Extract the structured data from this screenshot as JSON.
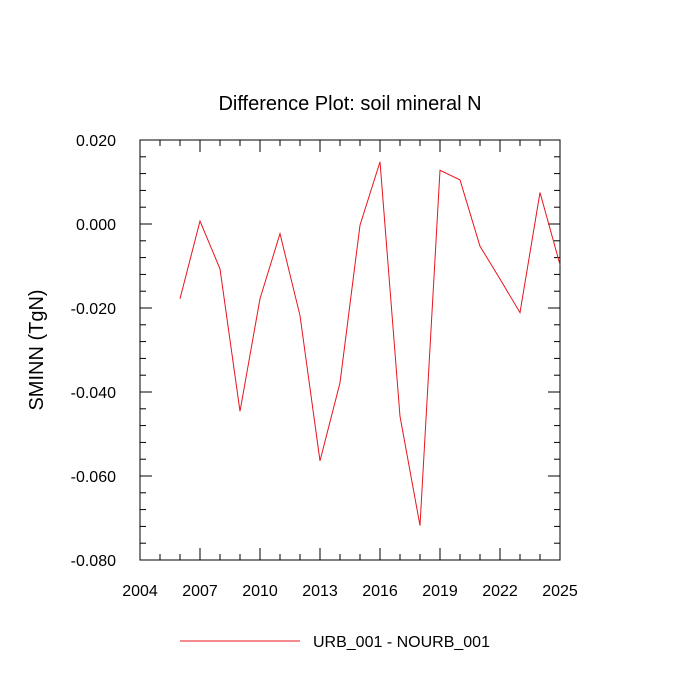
{
  "chart_data": {
    "type": "line",
    "title": "Difference Plot: soil mineral N",
    "xlabel": "",
    "ylabel": "SMINN  (TgN)",
    "xlim": [
      2004,
      2025
    ],
    "ylim": [
      -0.08,
      0.02
    ],
    "x_ticks": [
      2004,
      2007,
      2010,
      2013,
      2016,
      2019,
      2022,
      2025
    ],
    "x_tick_labels": [
      "2004",
      "2007",
      "2010",
      "2013",
      "2016",
      "2019",
      "2022",
      "2025"
    ],
    "y_ticks": [
      -0.08,
      -0.06,
      -0.04,
      -0.02,
      0.0,
      0.02
    ],
    "y_tick_labels": [
      "-0.080",
      "-0.060",
      "-0.040",
      "-0.020",
      "0.000",
      "0.020"
    ],
    "grid": false,
    "legend_position": "bottom-center",
    "series": [
      {
        "name": "URB_001 - NOURB_001",
        "color": "#e8141e",
        "x": [
          2006,
          2007,
          2008,
          2009,
          2010,
          2011,
          2012,
          2013,
          2014,
          2015,
          2016,
          2017,
          2018,
          2019,
          2020,
          2021,
          2022,
          2023,
          2024,
          2025
        ],
        "y": [
          -0.0178,
          0.0007,
          -0.0107,
          -0.0446,
          -0.0178,
          -0.0023,
          -0.0218,
          -0.0564,
          -0.0378,
          -0.0003,
          0.0148,
          -0.0458,
          -0.0718,
          0.0128,
          0.0105,
          -0.0053,
          -0.0131,
          -0.0211,
          0.0075,
          -0.0097
        ]
      }
    ]
  }
}
